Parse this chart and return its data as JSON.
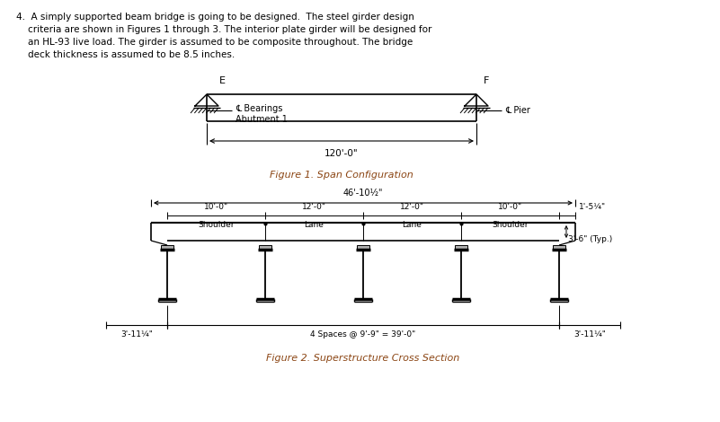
{
  "fig1_caption": "Figure 1. Span Configuration",
  "fig2_caption": "Figure 2. Superstructure Cross Section",
  "span_label": "120'-0\"",
  "width_label": "46'-10½\"",
  "shoulder_label": "10'-0\"",
  "lane1_label": "12'-0\"",
  "lane2_label": "12'-0\"",
  "shoulder2_label": "10'-0\"",
  "overhang_label": "1'-5¼\"",
  "deck_depth_label": "3'-6\" (Typ.)",
  "bottom_left_label": "3'-11¼\"",
  "bottom_right_label": "3'-11¼\"",
  "spaces_label": "4 Spaces @ 9'-9\" = 39'-0\"",
  "E_label": "E",
  "F_label": "F",
  "bearing_line1": "℄ Bearings",
  "bearing_line2": "Abutment 1",
  "pier_label": "℄ Pier",
  "text_color": "#000000",
  "caption_color": "#8B4513",
  "line_color": "#000000",
  "bg_color": "#ffffff",
  "top_text_line1": "4.  A simply supported beam bridge is going to be designed.  The steel girder design",
  "top_text_line2": "    criteria are shown in Figures 1 through 3. The interior plate girder will be designed for",
  "top_text_line3": "    an HL-93 live load. The girder is assumed to be composite throughout. The bridge",
  "top_text_line4": "    deck thickness is assumed to be 8.5 inches."
}
